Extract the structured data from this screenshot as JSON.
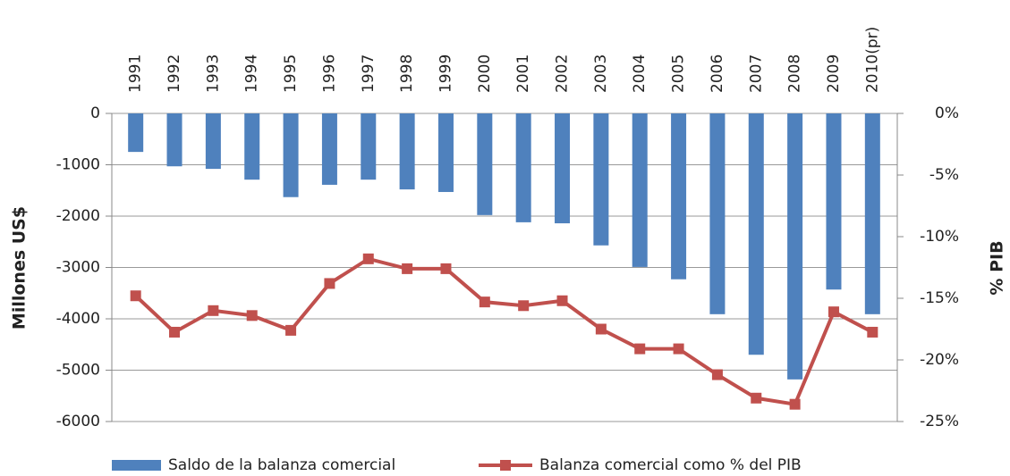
{
  "chart_data": {
    "type": "bar_line",
    "categories": [
      "1991",
      "1992",
      "1993",
      "1994",
      "1995",
      "1996",
      "1997",
      "1998",
      "1999",
      "2000",
      "2001",
      "2002",
      "2003",
      "2004",
      "2005",
      "2006",
      "2007",
      "2008",
      "2009",
      "2010(pr)"
    ],
    "series": [
      {
        "name": "Saldo de la balanza comercial",
        "type": "bar",
        "color": "#4f81bd",
        "axis": "y",
        "values": [
          -750,
          -1030,
          -1080,
          -1290,
          -1630,
          -1390,
          -1290,
          -1480,
          -1530,
          -1980,
          -2120,
          -2140,
          -2570,
          -2990,
          -3230,
          -3910,
          -4700,
          -5180,
          -3430,
          -3910
        ]
      },
      {
        "name": "Balanza comercial como % del PIB",
        "type": "line",
        "color": "#c0504d",
        "axis": "y2",
        "values": [
          -14.8,
          -17.75,
          -16.0,
          -16.4,
          -17.6,
          -13.8,
          -11.8,
          -12.6,
          -12.6,
          -15.3,
          -15.6,
          -15.2,
          -17.5,
          -19.1,
          -19.1,
          -21.2,
          -23.1,
          -23.6,
          -16.1,
          -17.75
        ]
      }
    ],
    "y_label": "Millones US$",
    "y2_label": "% PIB",
    "ylim": [
      -6000,
      0
    ],
    "yticks": [
      0,
      -1000,
      -2000,
      -3000,
      -4000,
      -5000,
      -6000
    ],
    "y2lim": [
      -25,
      0
    ],
    "y2ticks": [
      {
        "value": 0,
        "label": "0%"
      },
      {
        "value": -5,
        "label": "-5%"
      },
      {
        "value": -10,
        "label": "-10%"
      },
      {
        "value": -15,
        "label": "-15%"
      },
      {
        "value": -20,
        "label": "-20%"
      },
      {
        "value": -25,
        "label": "-25%"
      }
    ],
    "grid": true,
    "legend": "bottom"
  }
}
